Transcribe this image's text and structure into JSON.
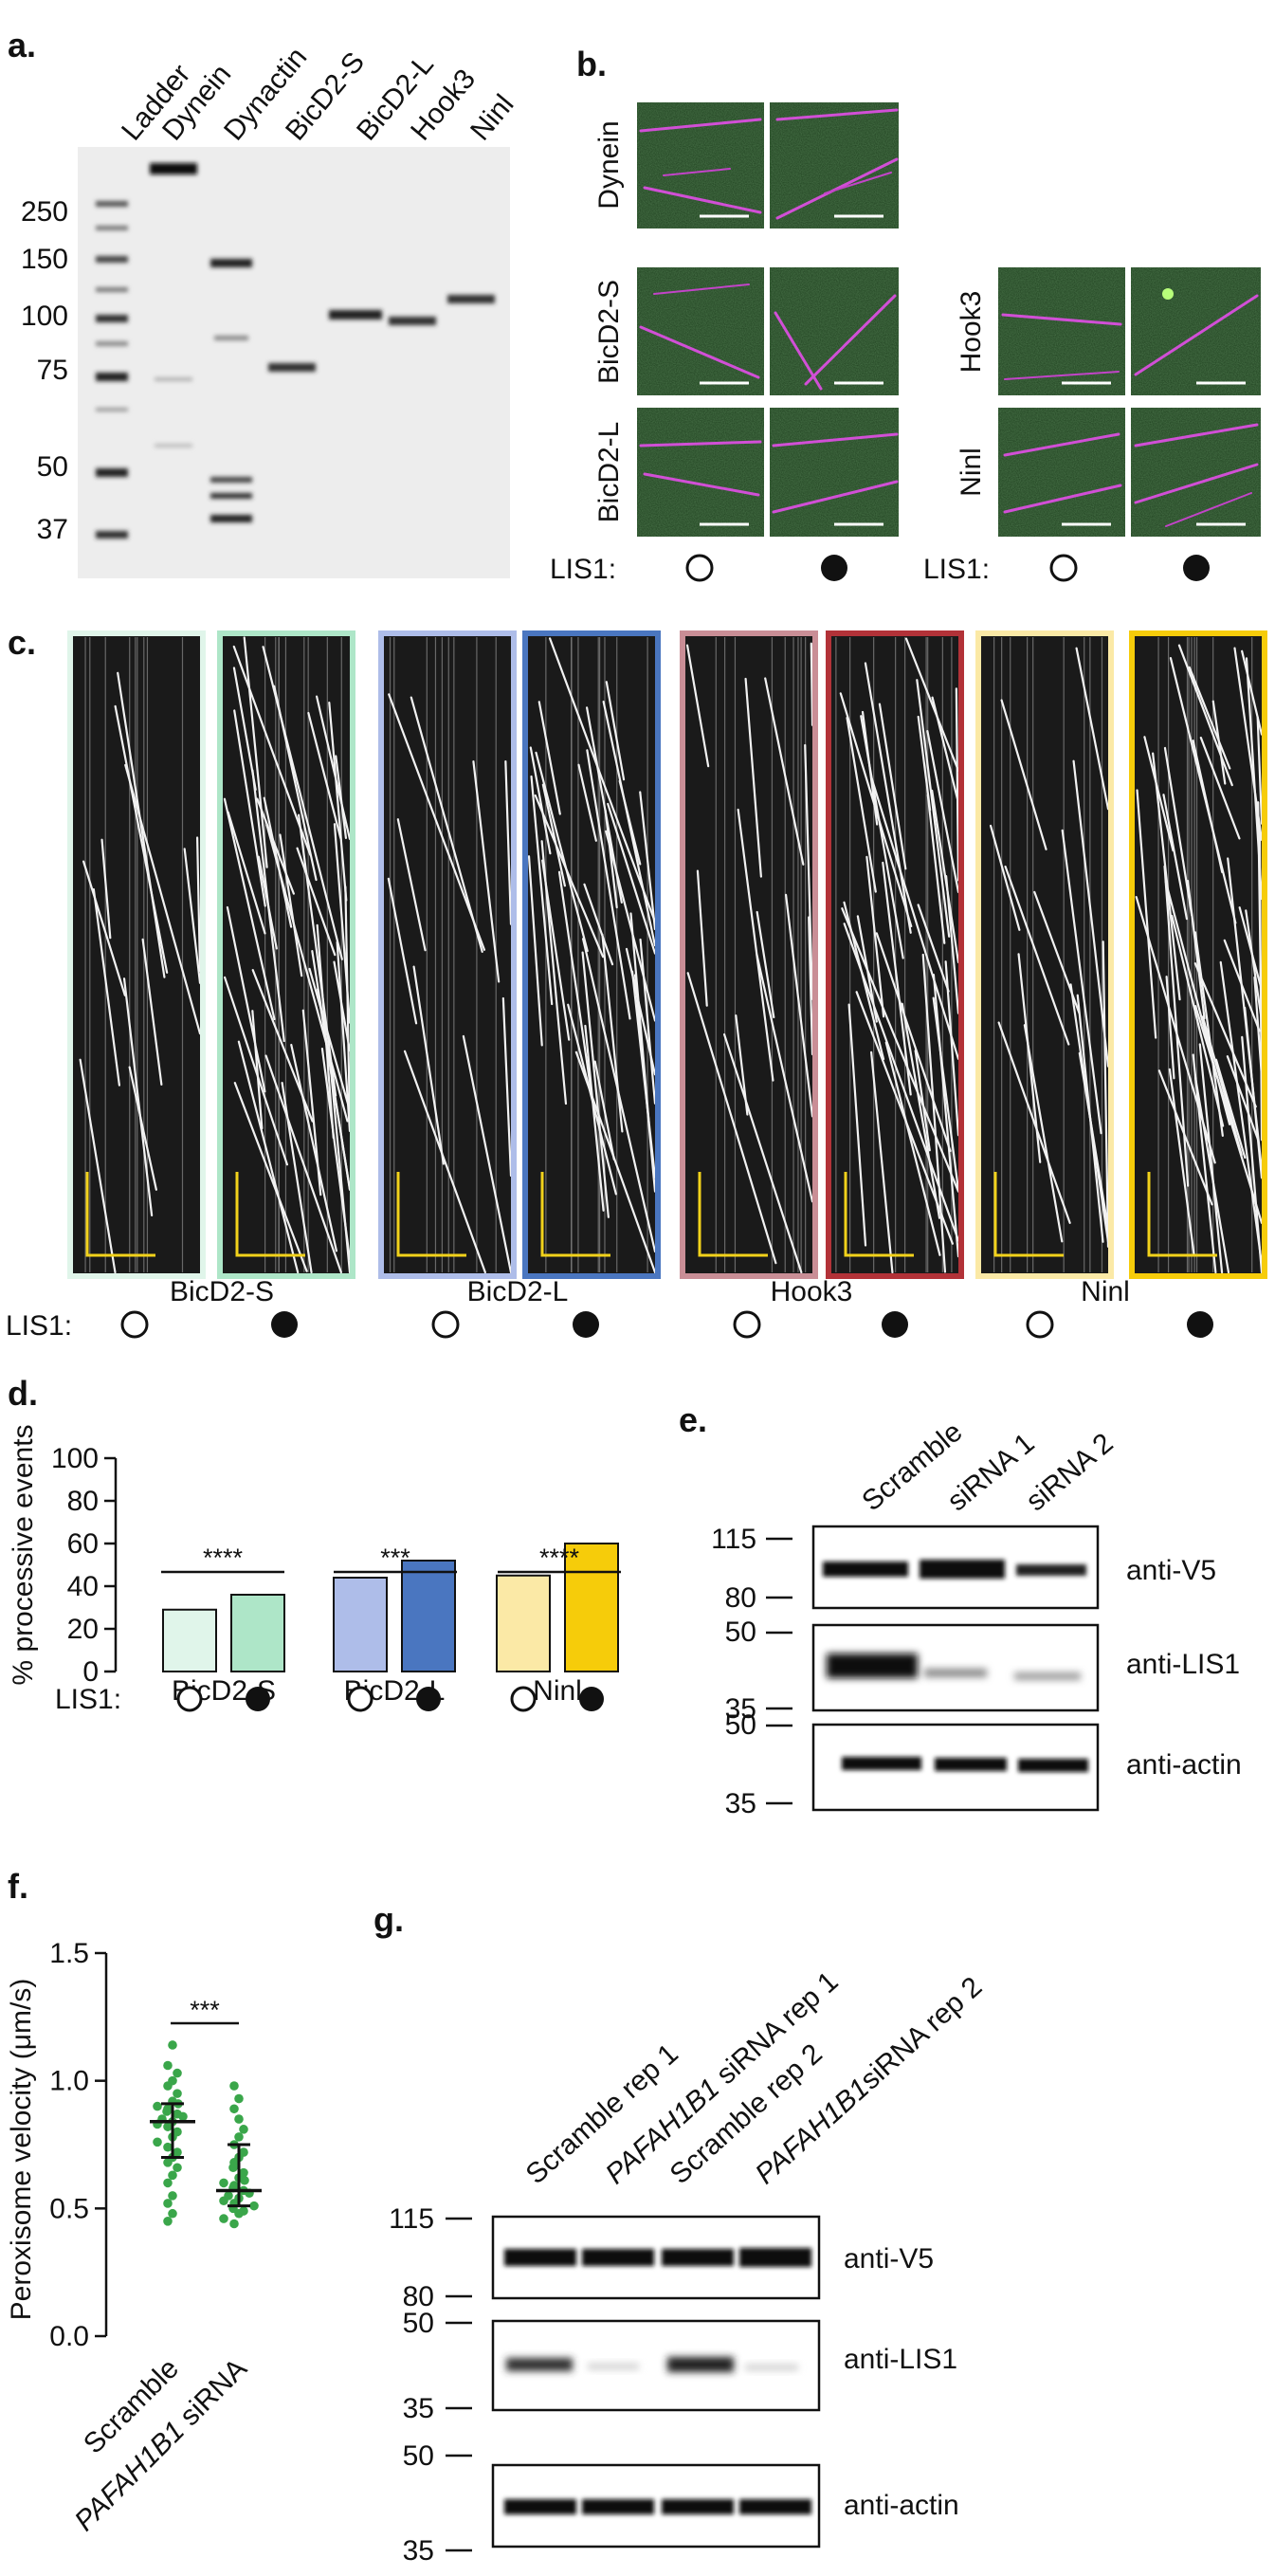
{
  "colors": {
    "gel_bg": "#ededed",
    "microscopy_bg": "#1e3f1e",
    "kymo_bg": "#1a1a1a",
    "scale_bar_yellow": "#f2d21b",
    "bicd2s": "#aee6c8",
    "bicd2s_light": "#e0f5ea",
    "bicd2l": "#4a76c0",
    "bicd2l_light": "#aebde9",
    "hook3": "#b23238",
    "hook3_light": "#c98e96",
    "ninl": "#f6cc0a",
    "ninl_light": "#fbe9a6",
    "dot_green": "#3aa64a"
  },
  "panel_a": {
    "label": "a.",
    "lanes": [
      "Ladder",
      "Dynein",
      "Dynactin",
      "BicD2-S",
      "BicD2-L",
      "Hook3",
      "Ninl"
    ],
    "mw_markers": [
      "250",
      "150",
      "100",
      "75",
      "50",
      "37"
    ]
  },
  "panel_b": {
    "label": "b.",
    "rows_left": [
      "Dynein",
      "BicD2-S",
      "BicD2-L"
    ],
    "rows_right": [
      "Hook3",
      "Ninl"
    ],
    "lis1_label": "LIS1:"
  },
  "panel_c": {
    "label": "c.",
    "groups": [
      "BicD2-S",
      "BicD2-L",
      "Hook3",
      "Ninl"
    ],
    "lis1_label": "LIS1:"
  },
  "panel_d": {
    "label": "d.",
    "lis1_label": "LIS1:",
    "significance": [
      "****",
      "***",
      "****"
    ]
  },
  "panel_e": {
    "label": "e.",
    "lanes": [
      "Scramble",
      "siRNA 1",
      "siRNA 2"
    ],
    "blots": [
      "anti-V5",
      "anti-LIS1",
      "anti-actin"
    ],
    "mw": [
      "115",
      "80",
      "50",
      "35",
      "50",
      "35"
    ]
  },
  "panel_f": {
    "label": "f.",
    "significance": "***"
  },
  "panel_g": {
    "label": "g.",
    "lanes": [
      {
        "gene": "",
        "text": "Scramble rep 1"
      },
      {
        "gene": "PAFAH1B1",
        "text": " siRNA rep 1"
      },
      {
        "gene": "",
        "text": "Scramble rep 2"
      },
      {
        "gene": "PAFAH1B1",
        "text": "siRNA rep 2"
      }
    ],
    "blots": [
      "anti-V5",
      "anti-LIS1",
      "anti-actin"
    ],
    "mw": [
      "115",
      "80",
      "50",
      "35",
      "50",
      "35"
    ]
  },
  "chart_data": [
    {
      "type": "bar",
      "panel": "d",
      "categories": [
        "BicD2-S",
        "BicD2-L",
        "Ninl"
      ],
      "series": [
        {
          "condition": "LIS1 absent (open circle)",
          "values": [
            29,
            44,
            45
          ]
        },
        {
          "condition": "LIS1 present (filled circle)",
          "values": [
            36,
            52,
            60
          ]
        }
      ],
      "ylabel": "% processive events",
      "ylim": [
        0,
        100
      ],
      "yticks": [
        "0",
        "20",
        "40",
        "60",
        "80",
        "100"
      ]
    },
    {
      "type": "scatter",
      "panel": "f",
      "categories": [
        "Scramble",
        "siRNA"
      ],
      "category_gene": [
        "",
        "PAFAH1B1"
      ],
      "ylabel": "Peroxisome velocity (μm/s)",
      "ylim": [
        0,
        1.5
      ],
      "yticks": [
        "0.0",
        "0.5",
        "1.0",
        "1.5"
      ],
      "medians": [
        0.84,
        0.57
      ],
      "iqr": [
        [
          0.7,
          0.91
        ],
        [
          0.51,
          0.75
        ]
      ],
      "points": [
        [
          0.45,
          0.48,
          0.52,
          0.55,
          0.6,
          0.63,
          0.66,
          0.68,
          0.7,
          0.72,
          0.74,
          0.76,
          0.78,
          0.8,
          0.82,
          0.83,
          0.84,
          0.85,
          0.86,
          0.87,
          0.88,
          0.89,
          0.9,
          0.91,
          0.92,
          0.95,
          0.98,
          1.0,
          1.03,
          1.06,
          1.14
        ],
        [
          0.44,
          0.46,
          0.48,
          0.49,
          0.5,
          0.51,
          0.52,
          0.53,
          0.54,
          0.55,
          0.56,
          0.57,
          0.58,
          0.59,
          0.6,
          0.61,
          0.62,
          0.64,
          0.66,
          0.68,
          0.7,
          0.72,
          0.75,
          0.78,
          0.81,
          0.85,
          0.89,
          0.93,
          0.98
        ]
      ]
    }
  ]
}
